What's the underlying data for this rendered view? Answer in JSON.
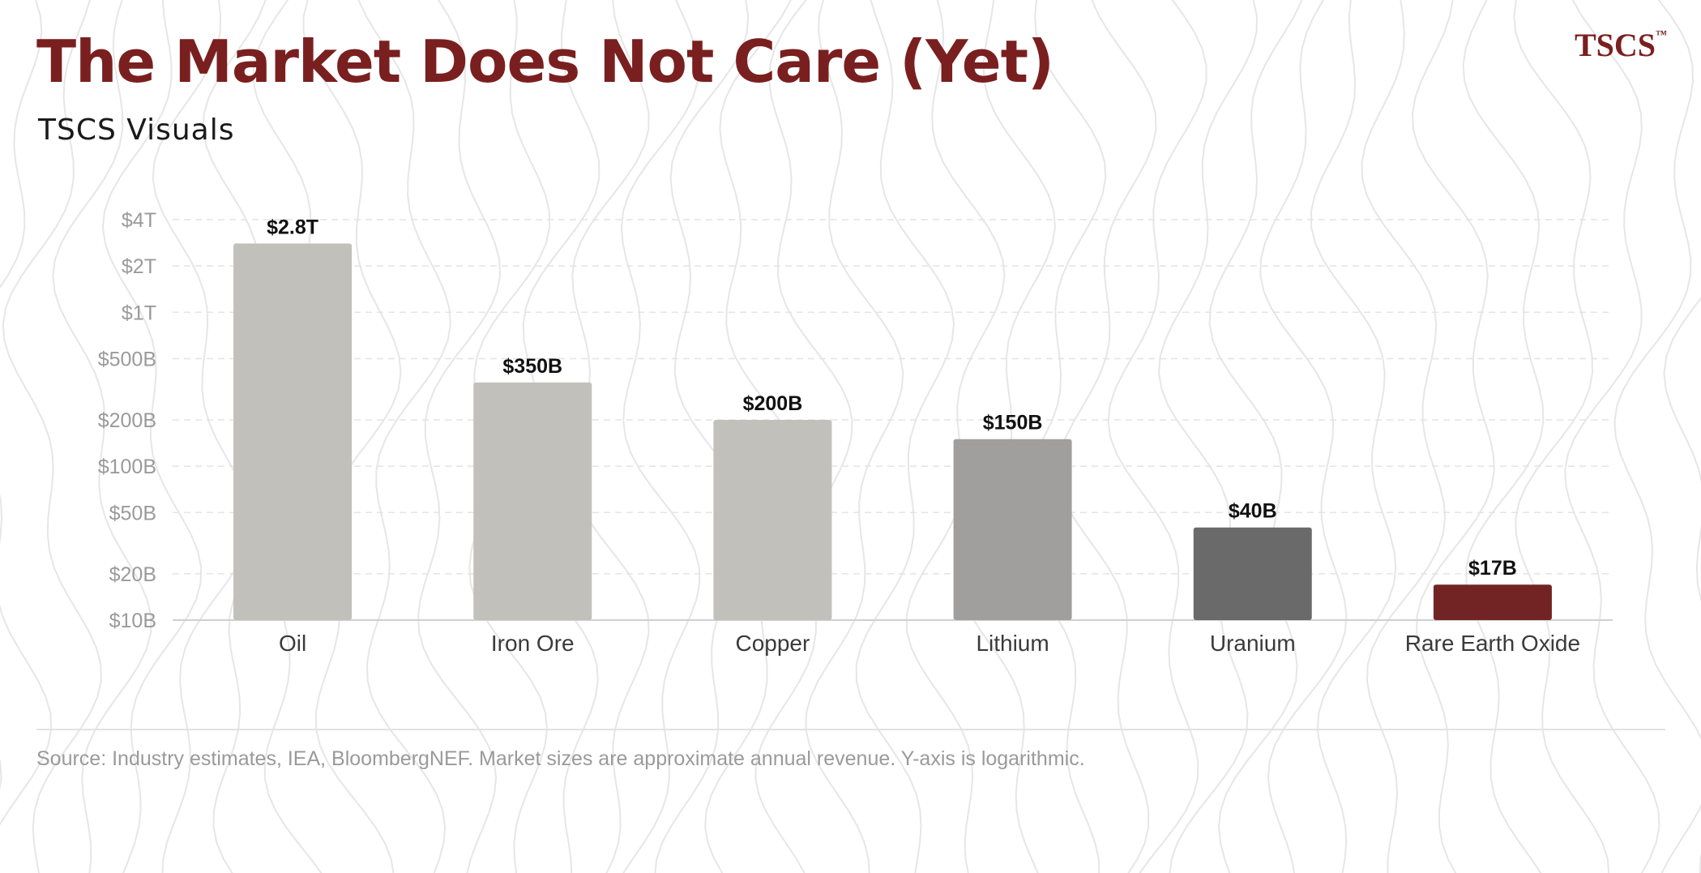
{
  "header": {
    "title": "The Market Does Not Care (Yet)",
    "subtitle": "TSCS Visuals",
    "brand": "TSCS",
    "brand_mark": "™"
  },
  "footer": {
    "source": "Source: Industry estimates, IEA, BloombergNEF. Market sizes are approximate annual revenue. Y-axis is logarithmic."
  },
  "colors": {
    "title": "#7a1f1f",
    "bar_light": "#c2c0bb",
    "bar_medium": "#a09f9e",
    "bar_dark": "#6a6a6a",
    "bar_accent": "#722424",
    "grid": "#e4e4e4",
    "axis": "#d0d0d0",
    "tick_text": "#9a9a9a",
    "category_text": "#3a3a3a",
    "value_label": "#111111"
  },
  "chart_data": {
    "type": "bar",
    "yscale": "log",
    "categories": [
      "Oil",
      "Iron Ore",
      "Copper",
      "Lithium",
      "Uranium",
      "Rare Earth Oxide"
    ],
    "values": [
      2800000000000,
      350000000000,
      200000000000,
      150000000000,
      40000000000,
      17000000000
    ],
    "value_labels": [
      "$2.8T",
      "$350B",
      "$200B",
      "$150B",
      "$40B",
      "$17B"
    ],
    "bar_colors": [
      "#c2c0bb",
      "#c2c0bb",
      "#c2c0bb",
      "#a09f9e",
      "#6a6a6a",
      "#722424"
    ],
    "y_ticks": [
      {
        "value": 10000000000,
        "label": "$10B"
      },
      {
        "value": 20000000000,
        "label": "$20B"
      },
      {
        "value": 50000000000,
        "label": "$50B"
      },
      {
        "value": 100000000000,
        "label": "$100B"
      },
      {
        "value": 200000000000,
        "label": "$200B"
      },
      {
        "value": 500000000000,
        "label": "$500B"
      },
      {
        "value": 1000000000000,
        "label": "$1T"
      },
      {
        "value": 2000000000000,
        "label": "$2T"
      },
      {
        "value": 4000000000000,
        "label": "$4T"
      }
    ],
    "ylim": [
      10000000000,
      4000000000000
    ],
    "grid": true,
    "legend": "none"
  }
}
